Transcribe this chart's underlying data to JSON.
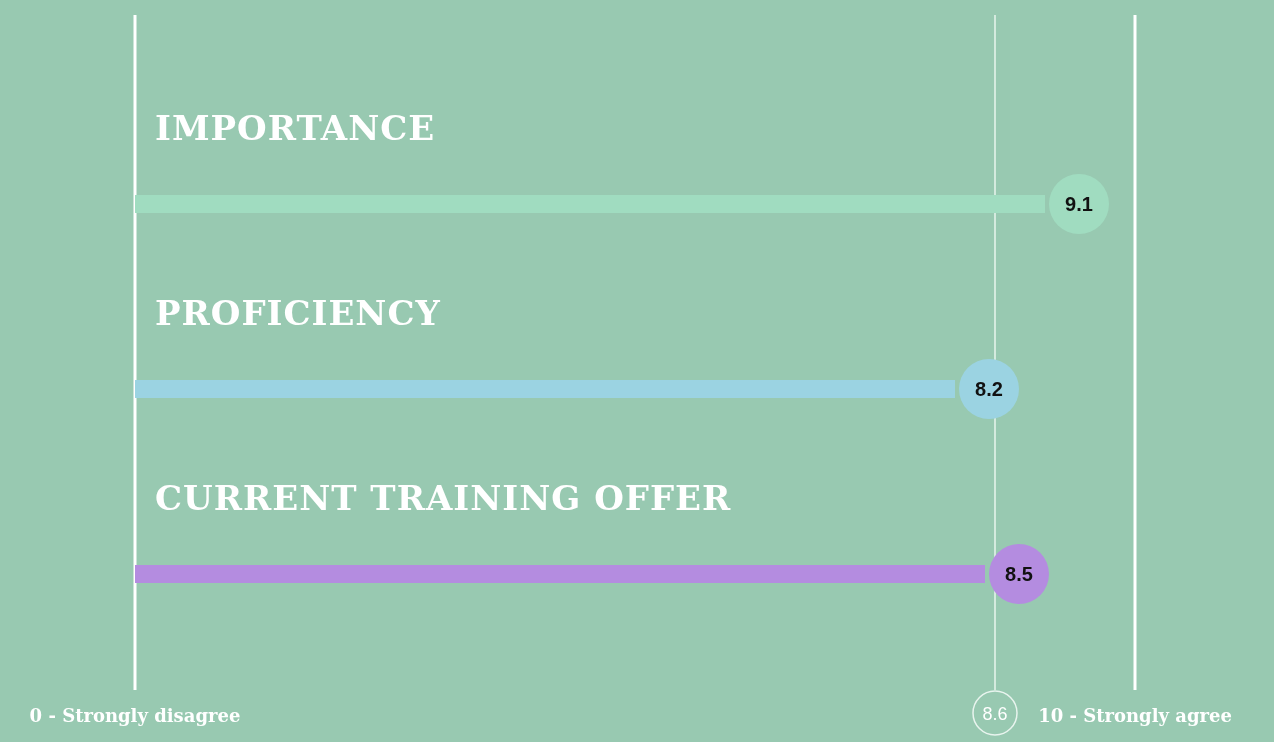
{
  "chart_data": {
    "type": "bar",
    "orientation": "horizontal",
    "categories": [
      "IMPORTANCE",
      "PROFICIENCY",
      "CURRENT TRAINING OFFER"
    ],
    "values": [
      9.1,
      8.2,
      8.5
    ],
    "colors": [
      "#a0dcc0",
      "#9bd3e2",
      "#b48ce0"
    ],
    "xlim": [
      0,
      10
    ],
    "xticks": [
      {
        "value": 0,
        "label": "0 - Strongly disagree"
      },
      {
        "value": 10,
        "label": "10 - Strongly agree"
      }
    ],
    "data_labels": true,
    "ref_lines": [
      {
        "axis": "x",
        "value": 8.6,
        "label": "8.6",
        "color": "#e8f4ee"
      }
    ]
  }
}
